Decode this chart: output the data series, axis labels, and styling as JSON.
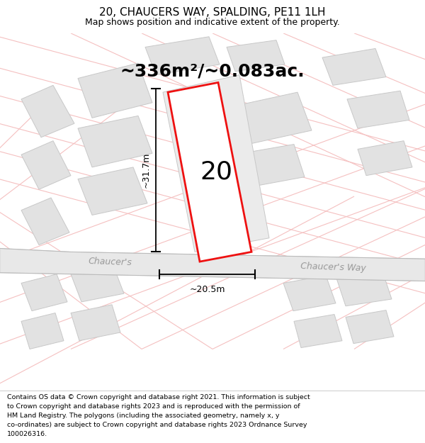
{
  "title": "20, CHAUCERS WAY, SPALDING, PE11 1LH",
  "subtitle": "Map shows position and indicative extent of the property.",
  "footer_text": "Contains OS data © Crown copyright and database right 2021. This information is subject\nto Crown copyright and database rights 2023 and is reproduced with the permission of\nHM Land Registry. The polygons (including the associated geometry, namely x, y\nco-ordinates) are subject to Crown copyright and database rights 2023 Ordnance Survey\n100026316.",
  "area_label": "~336m²/~0.083ac.",
  "plot_number": "20",
  "width_label": "~20.5m",
  "height_label": "~31.7m",
  "road_label_left": "Chaucer's",
  "road_label_right": "Chaucer's Way",
  "plot_color": "#ee1111",
  "grid_line_color": "#f5c0c0",
  "road_line_color": "#aaaaaa",
  "building_fc": "#e2e2e2",
  "building_ec": "#c8c8c8",
  "map_bg": "#fafafa",
  "title_fontsize": 11,
  "subtitle_fontsize": 9,
  "area_fontsize": 18,
  "plot_num_fontsize": 26,
  "dim_fontsize": 9,
  "road_fontsize": 9,
  "footer_fontsize": 6.8
}
